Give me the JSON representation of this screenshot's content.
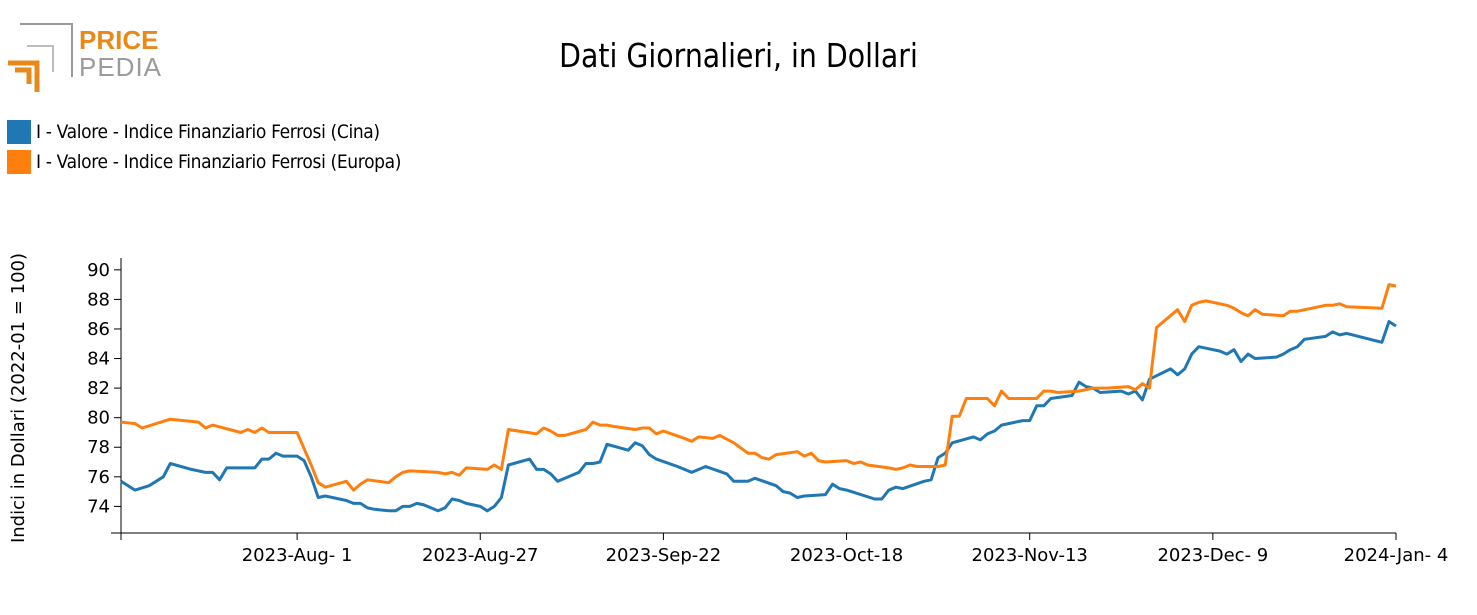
{
  "logo": {
    "line1": "PRICE",
    "line2": "PEDIA",
    "colors": {
      "orange": "#e8891a",
      "gray": "#9b9b9b"
    }
  },
  "chart_data": {
    "type": "line",
    "title": "Dati Giornalieri, in Dollari",
    "ylabel": "Indici in Dollari (2022-01 = 100)",
    "xlabel": "",
    "x_range": [
      "2023-07-07",
      "2024-01-04"
    ],
    "ylim": [
      72.2,
      90.8
    ],
    "yticks": [
      74,
      76,
      78,
      80,
      82,
      84,
      86,
      88,
      90
    ],
    "xtick_labels": [
      "2023-Aug- 1",
      "2023-Aug-27",
      "2023-Sep-22",
      "2023-Oct-18",
      "2023-Nov-13",
      "2023-Dec- 9",
      "2024-Jan- 4"
    ],
    "legend_position": "top-left",
    "grid": false,
    "series": [
      {
        "name": "I - Valore - Indice Finanziario Ferrosi (Cina)",
        "color": "#1f77b4",
        "points": [
          [
            "2023-07-07",
            75.7
          ],
          [
            "2023-07-09",
            75.1
          ],
          [
            "2023-07-11",
            75.4
          ],
          [
            "2023-07-13",
            76.0
          ],
          [
            "2023-07-14",
            76.9
          ],
          [
            "2023-07-17",
            76.5
          ],
          [
            "2023-07-19",
            76.3
          ],
          [
            "2023-07-20",
            76.3
          ],
          [
            "2023-07-21",
            75.8
          ],
          [
            "2023-07-22",
            76.6
          ],
          [
            "2023-07-26",
            76.6
          ],
          [
            "2023-07-27",
            77.2
          ],
          [
            "2023-07-28",
            77.2
          ],
          [
            "2023-07-29",
            77.6
          ],
          [
            "2023-07-30",
            77.4
          ],
          [
            "2023-08-01",
            77.4
          ],
          [
            "2023-08-02",
            77.1
          ],
          [
            "2023-08-03",
            76.0
          ],
          [
            "2023-08-04",
            74.6
          ],
          [
            "2023-08-05",
            74.7
          ],
          [
            "2023-08-07",
            74.5
          ],
          [
            "2023-08-08",
            74.4
          ],
          [
            "2023-08-09",
            74.2
          ],
          [
            "2023-08-10",
            74.2
          ],
          [
            "2023-08-11",
            73.9
          ],
          [
            "2023-08-12",
            73.8
          ],
          [
            "2023-08-14",
            73.7
          ],
          [
            "2023-08-15",
            73.7
          ],
          [
            "2023-08-16",
            74.0
          ],
          [
            "2023-08-17",
            74.0
          ],
          [
            "2023-08-18",
            74.2
          ],
          [
            "2023-08-19",
            74.1
          ],
          [
            "2023-08-21",
            73.7
          ],
          [
            "2023-08-22",
            73.9
          ],
          [
            "2023-08-23",
            74.5
          ],
          [
            "2023-08-24",
            74.4
          ],
          [
            "2023-08-25",
            74.2
          ],
          [
            "2023-08-27",
            74.0
          ],
          [
            "2023-08-28",
            73.7
          ],
          [
            "2023-08-29",
            74.0
          ],
          [
            "2023-08-30",
            74.6
          ],
          [
            "2023-08-31",
            76.8
          ],
          [
            "2023-09-03",
            77.2
          ],
          [
            "2023-09-04",
            76.5
          ],
          [
            "2023-09-05",
            76.5
          ],
          [
            "2023-09-06",
            76.2
          ],
          [
            "2023-09-07",
            75.7
          ],
          [
            "2023-09-10",
            76.3
          ],
          [
            "2023-09-11",
            76.9
          ],
          [
            "2023-09-12",
            76.9
          ],
          [
            "2023-09-13",
            77.0
          ],
          [
            "2023-09-14",
            78.2
          ],
          [
            "2023-09-17",
            77.8
          ],
          [
            "2023-09-18",
            78.3
          ],
          [
            "2023-09-19",
            78.1
          ],
          [
            "2023-09-20",
            77.5
          ],
          [
            "2023-09-21",
            77.2
          ],
          [
            "2023-09-24",
            76.7
          ],
          [
            "2023-09-25",
            76.5
          ],
          [
            "2023-09-26",
            76.3
          ],
          [
            "2023-09-28",
            76.7
          ],
          [
            "2023-10-01",
            76.2
          ],
          [
            "2023-10-02",
            75.7
          ],
          [
            "2023-10-04",
            75.7
          ],
          [
            "2023-10-05",
            75.9
          ],
          [
            "2023-10-08",
            75.4
          ],
          [
            "2023-10-09",
            75.0
          ],
          [
            "2023-10-10",
            74.9
          ],
          [
            "2023-10-11",
            74.6
          ],
          [
            "2023-10-12",
            74.7
          ],
          [
            "2023-10-15",
            74.8
          ],
          [
            "2023-10-16",
            75.5
          ],
          [
            "2023-10-17",
            75.2
          ],
          [
            "2023-10-18",
            75.1
          ],
          [
            "2023-10-22",
            74.5
          ],
          [
            "2023-10-23",
            74.5
          ],
          [
            "2023-10-24",
            75.1
          ],
          [
            "2023-10-25",
            75.3
          ],
          [
            "2023-10-26",
            75.2
          ],
          [
            "2023-10-29",
            75.7
          ],
          [
            "2023-10-30",
            75.8
          ],
          [
            "2023-10-31",
            77.3
          ],
          [
            "2023-11-01",
            77.6
          ],
          [
            "2023-11-02",
            78.3
          ],
          [
            "2023-11-05",
            78.7
          ],
          [
            "2023-11-06",
            78.5
          ],
          [
            "2023-11-07",
            78.9
          ],
          [
            "2023-11-08",
            79.1
          ],
          [
            "2023-11-09",
            79.5
          ],
          [
            "2023-11-12",
            79.8
          ],
          [
            "2023-11-13",
            79.8
          ],
          [
            "2023-11-14",
            80.8
          ],
          [
            "2023-11-15",
            80.8
          ],
          [
            "2023-11-16",
            81.3
          ],
          [
            "2023-11-19",
            81.5
          ],
          [
            "2023-11-20",
            82.4
          ],
          [
            "2023-11-21",
            82.1
          ],
          [
            "2023-11-22",
            82.0
          ],
          [
            "2023-11-23",
            81.7
          ],
          [
            "2023-11-26",
            81.8
          ],
          [
            "2023-11-27",
            81.6
          ],
          [
            "2023-11-28",
            81.8
          ],
          [
            "2023-11-29",
            81.2
          ],
          [
            "2023-11-30",
            82.6
          ],
          [
            "2023-12-03",
            83.3
          ],
          [
            "2023-12-04",
            82.9
          ],
          [
            "2023-12-05",
            83.3
          ],
          [
            "2023-12-06",
            84.3
          ],
          [
            "2023-12-07",
            84.8
          ],
          [
            "2023-12-10",
            84.5
          ],
          [
            "2023-12-11",
            84.3
          ],
          [
            "2023-12-12",
            84.6
          ],
          [
            "2023-12-13",
            83.8
          ],
          [
            "2023-12-14",
            84.3
          ],
          [
            "2023-12-15",
            84.0
          ],
          [
            "2023-12-18",
            84.1
          ],
          [
            "2023-12-19",
            84.3
          ],
          [
            "2023-12-20",
            84.6
          ],
          [
            "2023-12-21",
            84.8
          ],
          [
            "2023-12-22",
            85.3
          ],
          [
            "2023-12-25",
            85.5
          ],
          [
            "2023-12-26",
            85.8
          ],
          [
            "2023-12-27",
            85.6
          ],
          [
            "2023-12-28",
            85.7
          ],
          [
            "2024-01-02",
            85.1
          ],
          [
            "2024-01-03",
            86.5
          ],
          [
            "2024-01-04",
            86.2
          ]
        ]
      },
      {
        "name": "I - Valore - Indice Finanziario Ferrosi (Europa)",
        "color": "#ff7f0e",
        "points": [
          [
            "2023-07-07",
            79.7
          ],
          [
            "2023-07-09",
            79.6
          ],
          [
            "2023-07-10",
            79.3
          ],
          [
            "2023-07-14",
            79.9
          ],
          [
            "2023-07-18",
            79.7
          ],
          [
            "2023-07-19",
            79.3
          ],
          [
            "2023-07-20",
            79.5
          ],
          [
            "2023-07-24",
            79.0
          ],
          [
            "2023-07-25",
            79.2
          ],
          [
            "2023-07-26",
            79.0
          ],
          [
            "2023-07-27",
            79.3
          ],
          [
            "2023-07-28",
            79.0
          ],
          [
            "2023-08-01",
            79.0
          ],
          [
            "2023-08-02",
            77.9
          ],
          [
            "2023-08-03",
            76.8
          ],
          [
            "2023-08-04",
            75.6
          ],
          [
            "2023-08-05",
            75.3
          ],
          [
            "2023-08-08",
            75.7
          ],
          [
            "2023-08-09",
            75.1
          ],
          [
            "2023-08-10",
            75.5
          ],
          [
            "2023-08-11",
            75.8
          ],
          [
            "2023-08-14",
            75.6
          ],
          [
            "2023-08-15",
            76.0
          ],
          [
            "2023-08-16",
            76.3
          ],
          [
            "2023-08-17",
            76.4
          ],
          [
            "2023-08-21",
            76.3
          ],
          [
            "2023-08-22",
            76.2
          ],
          [
            "2023-08-23",
            76.3
          ],
          [
            "2023-08-24",
            76.1
          ],
          [
            "2023-08-25",
            76.6
          ],
          [
            "2023-08-28",
            76.5
          ],
          [
            "2023-08-29",
            76.8
          ],
          [
            "2023-08-30",
            76.5
          ],
          [
            "2023-08-31",
            79.2
          ],
          [
            "2023-09-04",
            78.9
          ],
          [
            "2023-09-05",
            79.3
          ],
          [
            "2023-09-06",
            79.1
          ],
          [
            "2023-09-07",
            78.8
          ],
          [
            "2023-09-08",
            78.8
          ],
          [
            "2023-09-11",
            79.2
          ],
          [
            "2023-09-12",
            79.7
          ],
          [
            "2023-09-13",
            79.5
          ],
          [
            "2023-09-14",
            79.5
          ],
          [
            "2023-09-15",
            79.4
          ],
          [
            "2023-09-18",
            79.2
          ],
          [
            "2023-09-19",
            79.3
          ],
          [
            "2023-09-20",
            79.3
          ],
          [
            "2023-09-21",
            78.9
          ],
          [
            "2023-09-22",
            79.1
          ],
          [
            "2023-09-25",
            78.6
          ],
          [
            "2023-09-26",
            78.4
          ],
          [
            "2023-09-27",
            78.7
          ],
          [
            "2023-09-29",
            78.6
          ],
          [
            "2023-09-30",
            78.8
          ],
          [
            "2023-10-02",
            78.3
          ],
          [
            "2023-10-04",
            77.6
          ],
          [
            "2023-10-05",
            77.6
          ],
          [
            "2023-10-06",
            77.3
          ],
          [
            "2023-10-07",
            77.2
          ],
          [
            "2023-10-08",
            77.5
          ],
          [
            "2023-10-11",
            77.7
          ],
          [
            "2023-10-12",
            77.4
          ],
          [
            "2023-10-13",
            77.6
          ],
          [
            "2023-10-14",
            77.1
          ],
          [
            "2023-10-15",
            77.0
          ],
          [
            "2023-10-18",
            77.1
          ],
          [
            "2023-10-19",
            76.9
          ],
          [
            "2023-10-20",
            77.0
          ],
          [
            "2023-10-21",
            76.8
          ],
          [
            "2023-10-24",
            76.6
          ],
          [
            "2023-10-25",
            76.5
          ],
          [
            "2023-10-26",
            76.6
          ],
          [
            "2023-10-27",
            76.8
          ],
          [
            "2023-10-28",
            76.7
          ],
          [
            "2023-10-31",
            76.7
          ],
          [
            "2023-11-01",
            76.8
          ],
          [
            "2023-11-02",
            80.1
          ],
          [
            "2023-11-03",
            80.1
          ],
          [
            "2023-11-04",
            81.3
          ],
          [
            "2023-11-07",
            81.3
          ],
          [
            "2023-11-08",
            80.8
          ],
          [
            "2023-11-09",
            81.8
          ],
          [
            "2023-11-10",
            81.3
          ],
          [
            "2023-11-13",
            81.3
          ],
          [
            "2023-11-14",
            81.3
          ],
          [
            "2023-11-15",
            81.8
          ],
          [
            "2023-11-16",
            81.8
          ],
          [
            "2023-11-17",
            81.7
          ],
          [
            "2023-11-20",
            81.8
          ],
          [
            "2023-11-21",
            81.9
          ],
          [
            "2023-11-22",
            82.0
          ],
          [
            "2023-11-24",
            82.0
          ],
          [
            "2023-11-27",
            82.1
          ],
          [
            "2023-11-28",
            81.9
          ],
          [
            "2023-11-29",
            82.3
          ],
          [
            "2023-11-30",
            82.0
          ],
          [
            "2023-12-01",
            86.1
          ],
          [
            "2023-12-04",
            87.3
          ],
          [
            "2023-12-05",
            86.5
          ],
          [
            "2023-12-06",
            87.6
          ],
          [
            "2023-12-07",
            87.8
          ],
          [
            "2023-12-08",
            87.9
          ],
          [
            "2023-12-11",
            87.6
          ],
          [
            "2023-12-12",
            87.4
          ],
          [
            "2023-12-13",
            87.1
          ],
          [
            "2023-12-14",
            86.9
          ],
          [
            "2023-12-15",
            87.3
          ],
          [
            "2023-12-16",
            87.0
          ],
          [
            "2023-12-19",
            86.9
          ],
          [
            "2023-12-20",
            87.2
          ],
          [
            "2023-12-21",
            87.2
          ],
          [
            "2023-12-23",
            87.4
          ],
          [
            "2023-12-25",
            87.6
          ],
          [
            "2023-12-26",
            87.6
          ],
          [
            "2023-12-27",
            87.7
          ],
          [
            "2023-12-28",
            87.5
          ],
          [
            "2024-01-02",
            87.4
          ],
          [
            "2024-01-03",
            89.0
          ],
          [
            "2024-01-04",
            88.9
          ]
        ]
      }
    ]
  }
}
